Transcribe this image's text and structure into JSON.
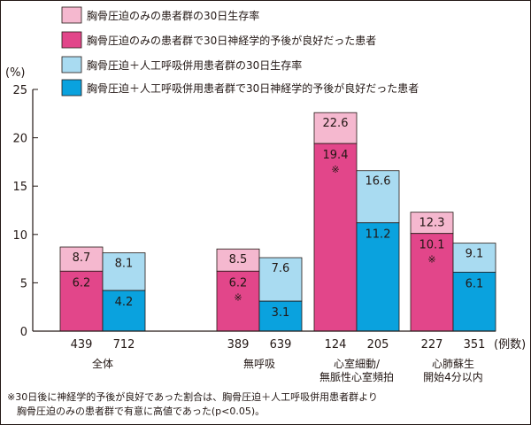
{
  "chart_data": {
    "type": "bar",
    "y_unit": "(%)",
    "ylim": [
      0,
      25
    ],
    "y_ticks": [
      "0",
      "5",
      "10",
      "15",
      "20",
      "25"
    ],
    "grid": false,
    "legend_position": "top",
    "colors": {
      "survival_light": "#f5b8cf",
      "neuro_dark": "#e2468a",
      "survival_light_blue": "#a9dbf1",
      "neuro_blue": "#0aa2de",
      "axis": "#231815"
    },
    "legend": [
      {
        "label": "胸骨圧迫のみの患者群の30日生存率",
        "color": "#f5b8cf"
      },
      {
        "label": "胸骨圧迫のみの患者群で30日神経学的予後が良好だった患者",
        "color": "#e2468a"
      },
      {
        "label": "胸骨圧迫＋人工呼吸併用患者群の30日生存率",
        "color": "#a9dbf1"
      },
      {
        "label": "胸骨圧迫＋人工呼吸併用患者群で30日神経学的予後が良好だった患者",
        "color": "#0aa2de"
      }
    ],
    "groups": [
      {
        "name_lines": [
          "全体"
        ],
        "bars": [
          {
            "kind": "compression_only",
            "n": "439",
            "survival": 8.7,
            "neuro": 6.2,
            "survival_label": "8.7",
            "neuro_label": "6.2",
            "mark": ""
          },
          {
            "kind": "with_ventilation",
            "n": "712",
            "survival": 8.1,
            "neuro": 4.2,
            "survival_label": "8.1",
            "neuro_label": "4.2",
            "mark": ""
          }
        ]
      },
      {
        "name_lines": [
          "無呼吸"
        ],
        "bars": [
          {
            "kind": "compression_only",
            "n": "389",
            "survival": 8.5,
            "neuro": 6.2,
            "survival_label": "8.5",
            "neuro_label": "6.2",
            "mark": "※"
          },
          {
            "kind": "with_ventilation",
            "n": "639",
            "survival": 7.6,
            "neuro": 3.1,
            "survival_label": "7.6",
            "neuro_label": "3.1",
            "mark": ""
          }
        ]
      },
      {
        "name_lines": [
          "心室細動/",
          "無脈性心室頻拍"
        ],
        "bars": [
          {
            "kind": "compression_only",
            "n": "124",
            "survival": 22.6,
            "neuro": 19.4,
            "survival_label": "22.6",
            "neuro_label": "19.4",
            "mark": "※"
          },
          {
            "kind": "with_ventilation",
            "n": "205",
            "survival": 16.6,
            "neuro": 11.2,
            "survival_label": "16.6",
            "neuro_label": "11.2",
            "mark": ""
          }
        ]
      },
      {
        "name_lines": [
          "心肺蘇生",
          "開始4分以内"
        ],
        "bars": [
          {
            "kind": "compression_only",
            "n": "227",
            "survival": 12.3,
            "neuro": 10.1,
            "survival_label": "12.3",
            "neuro_label": "10.1",
            "mark": "※"
          },
          {
            "kind": "with_ventilation",
            "n": "351",
            "survival": 9.1,
            "neuro": 6.1,
            "survival_label": "9.1",
            "neuro_label": "6.1",
            "mark": ""
          }
        ]
      }
    ],
    "n_unit_label": "(例数)",
    "footnote": [
      "※30日後に神経学的予後が良好であった割合は、胸骨圧迫＋人工呼吸併用患者群より",
      "　胸骨圧迫のみの患者群で有意に高値であった(p<0.05)。"
    ]
  }
}
